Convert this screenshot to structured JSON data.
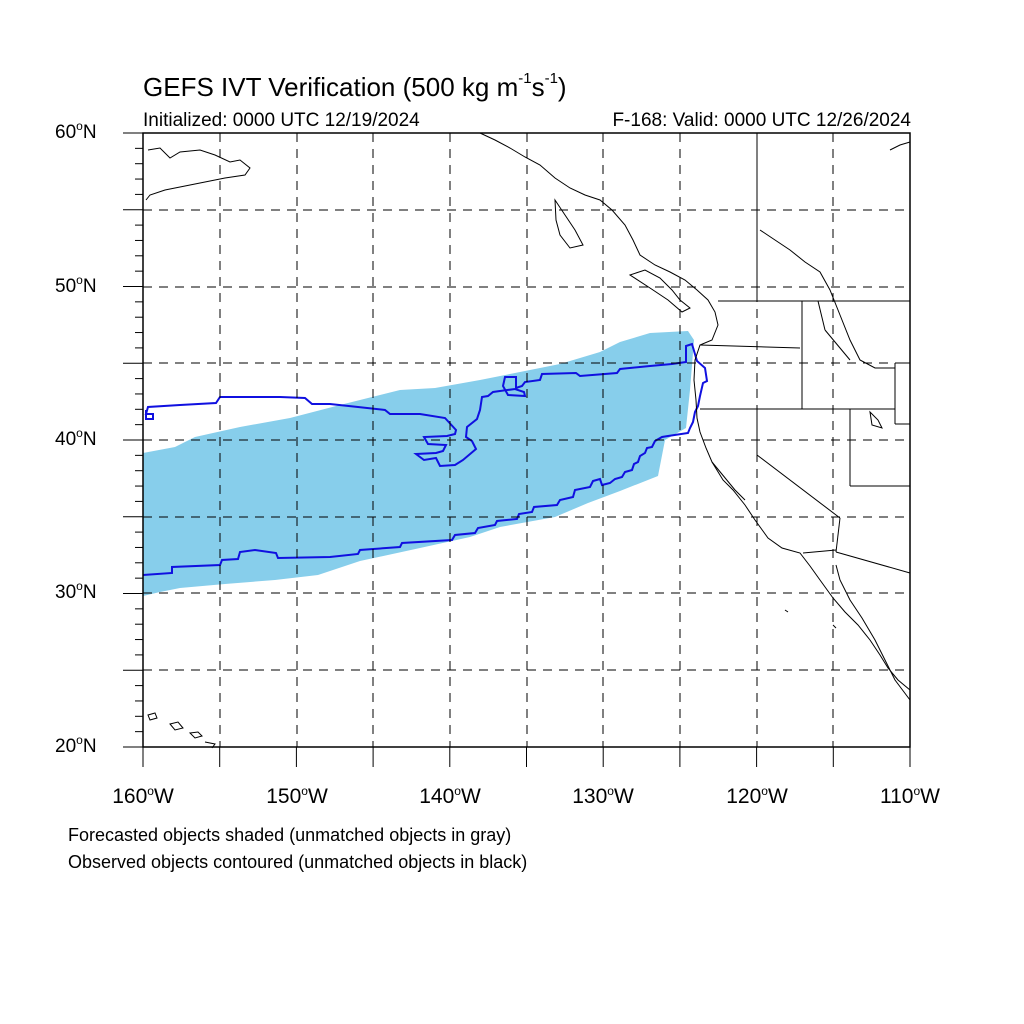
{
  "title": {
    "main": "GEFS IVT Verification (500 kg m",
    "exp1": "-1",
    "mid": "s",
    "exp2": "-1",
    "end": ")"
  },
  "initialized": "Initialized: 0000 UTC 12/19/2024",
  "valid": "F-168: Valid: 0000 UTC 12/26/2024",
  "lat_labels": [
    {
      "deg": "60",
      "hemi": "N"
    },
    {
      "deg": "50",
      "hemi": "N"
    },
    {
      "deg": "40",
      "hemi": "N"
    },
    {
      "deg": "30",
      "hemi": "N"
    },
    {
      "deg": "20",
      "hemi": "N"
    }
  ],
  "lon_labels": [
    {
      "deg": "160",
      "hemi": "W"
    },
    {
      "deg": "150",
      "hemi": "W"
    },
    {
      "deg": "140",
      "hemi": "W"
    },
    {
      "deg": "130",
      "hemi": "W"
    },
    {
      "deg": "120",
      "hemi": "W"
    },
    {
      "deg": "110",
      "hemi": "W"
    }
  ],
  "notes": [
    "Forecasted objects shaded (unmatched objects in gray)",
    "Observed objects contoured (unmatched objects in black)"
  ],
  "colors": {
    "forecast_fill": "#87ceeb",
    "observed_contour": "#1010e0",
    "coastline": "#000000",
    "grid": "#000000"
  },
  "map": {
    "lon_range": [
      -160,
      -110
    ],
    "lat_range": [
      20,
      60
    ],
    "projection": "cylindrical-equidistant",
    "grid": "dashed every 5 degrees"
  }
}
